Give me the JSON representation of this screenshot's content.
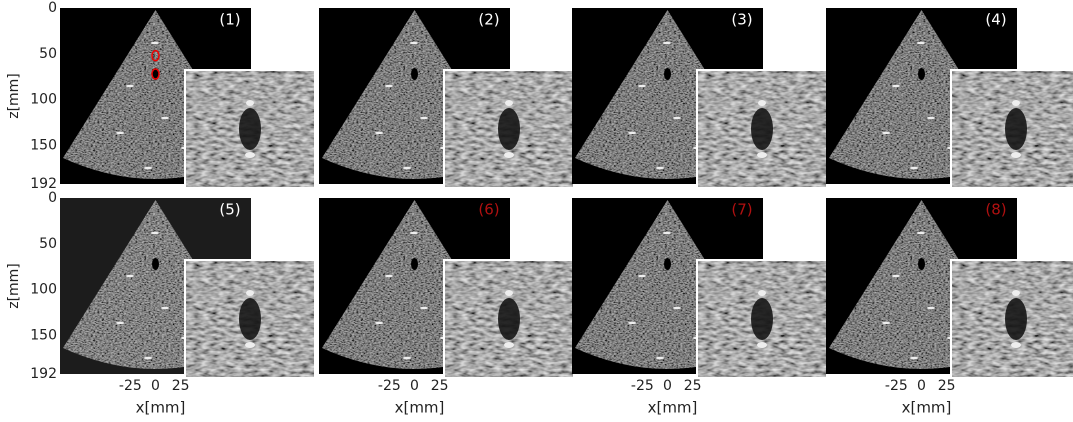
{
  "panels": [
    {
      "label": "(1)",
      "label_color": "#ffffff"
    },
    {
      "label": "(2)",
      "label_color": "#ffffff"
    },
    {
      "label": "(3)",
      "label_color": "#ffffff"
    },
    {
      "label": "(4)",
      "label_color": "#ffffff"
    },
    {
      "label": "(5)",
      "label_color": "#ffffff"
    },
    {
      "label": "(6)",
      "label_color": "#b01010"
    },
    {
      "label": "(7)",
      "label_color": "#b01010"
    },
    {
      "label": "(8)",
      "label_color": "#b01010"
    }
  ],
  "y_axis": {
    "label": "z[mm]",
    "lim": [
      0,
      192
    ],
    "ticks": [
      0,
      50,
      100,
      150,
      192
    ]
  },
  "x_axis": {
    "label": "x[mm]",
    "lim": [
      -95,
      95
    ],
    "ticks": [
      -25,
      0,
      25
    ]
  }
}
